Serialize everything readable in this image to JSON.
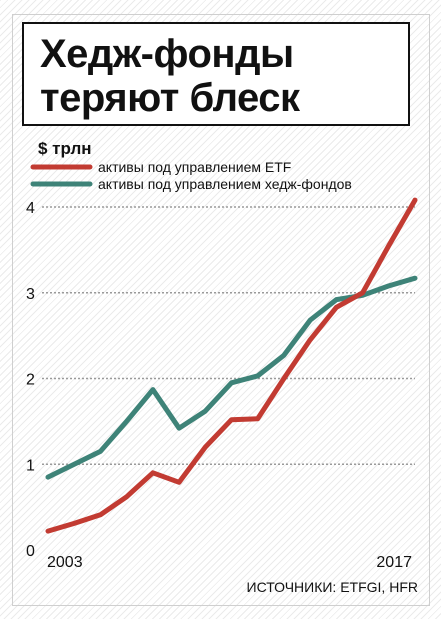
{
  "title_lines": [
    "Хедж-фонды",
    "теряют блеск"
  ],
  "chart_data": {
    "type": "line",
    "title": "Хедж-фонды теряют блеск",
    "ylabel": "$ трлн",
    "xlabel": "",
    "ylim": [
      0,
      4.2
    ],
    "xlim": [
      2003,
      2017
    ],
    "y_ticks": [
      "0",
      "1",
      "2",
      "3",
      "4"
    ],
    "x_tick_labels": [
      "2003",
      "2017"
    ],
    "grid": "horizontal dotted",
    "legend": "top-left",
    "x": [
      2003,
      2004,
      2005,
      2006,
      2007,
      2008,
      2009,
      2010,
      2011,
      2012,
      2013,
      2014,
      2015,
      2016,
      2017
    ],
    "series": [
      {
        "name": "активы под управлением ETF",
        "color": "#c23b32",
        "values": [
          0.22,
          0.31,
          0.41,
          0.62,
          0.9,
          0.79,
          1.2,
          1.52,
          1.53,
          2.0,
          2.45,
          2.83,
          3.0,
          3.55,
          4.08
        ]
      },
      {
        "name": "активы под управлением хедж-фондов",
        "color": "#3e8378",
        "values": [
          0.85,
          1.0,
          1.15,
          1.5,
          1.87,
          1.42,
          1.62,
          1.95,
          2.03,
          2.27,
          2.68,
          2.92,
          2.97,
          3.08,
          3.17
        ]
      }
    ],
    "source": "ИСТОЧНИКИ: ETFGI, HFR"
  }
}
